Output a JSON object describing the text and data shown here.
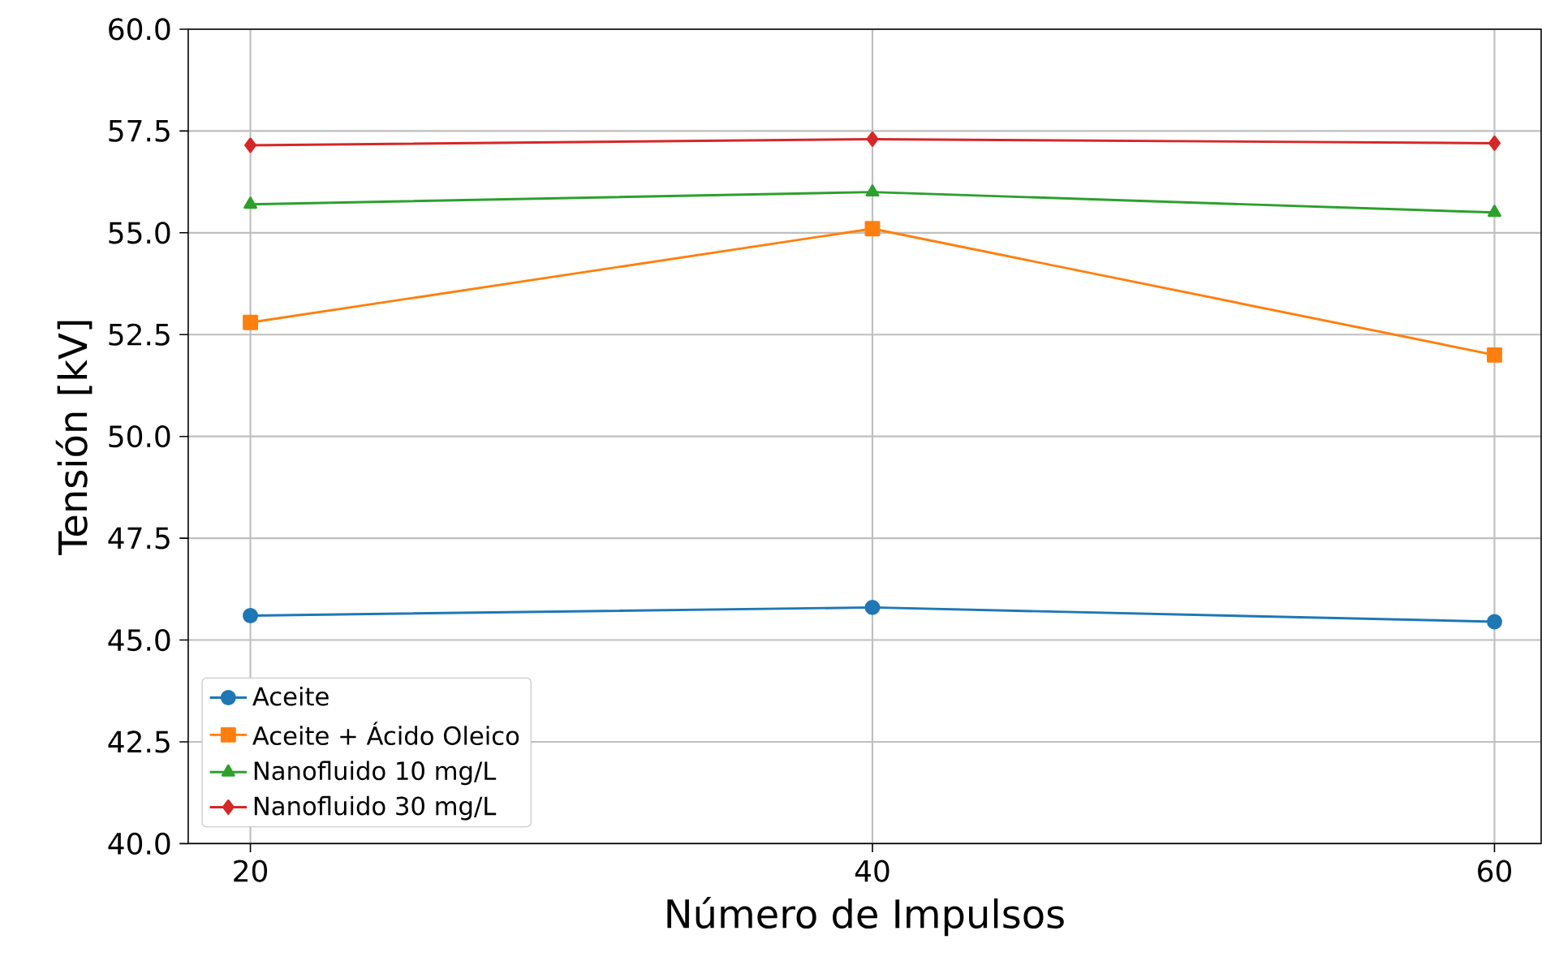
{
  "chart_data": {
    "type": "line",
    "xlabel": "Número de Impulsos",
    "ylabel": "Tensión [kV]",
    "x": [
      20,
      40,
      60
    ],
    "xlim": [
      18,
      61.5
    ],
    "xticks": [
      20,
      40,
      60
    ],
    "ylim": [
      40,
      60
    ],
    "yticks": [
      {
        "value": 40,
        "label": "40.0"
      },
      {
        "value": 42.5,
        "label": "42.5"
      },
      {
        "value": 45,
        "label": "45.0"
      },
      {
        "value": 47.5,
        "label": "47.5"
      },
      {
        "value": 50,
        "label": "50.0"
      },
      {
        "value": 52.5,
        "label": "52.5"
      },
      {
        "value": 55,
        "label": "55.0"
      },
      {
        "value": 57.5,
        "label": "57.5"
      },
      {
        "value": 60,
        "label": "60.0"
      }
    ],
    "grid": true,
    "legend": "bottom left",
    "line_style": "solid",
    "series": [
      {
        "name": "Aceite",
        "color": "#1f77b4",
        "marker": "circle",
        "values": [
          45.6,
          45.8,
          45.45
        ]
      },
      {
        "name": "Aceite + Ácido Oleico",
        "color": "#ff7f0e",
        "marker": "square",
        "values": [
          52.8,
          55.1,
          52.0
        ]
      },
      {
        "name": "Nanofluido 10 mg/L",
        "color": "#2ca02c",
        "marker": "triangle",
        "values": [
          55.7,
          56.0,
          55.5
        ]
      },
      {
        "name": "Nanofluido 30 mg/L",
        "color": "#d62728",
        "marker": "diamond",
        "values": [
          57.15,
          57.3,
          57.2
        ]
      }
    ]
  }
}
